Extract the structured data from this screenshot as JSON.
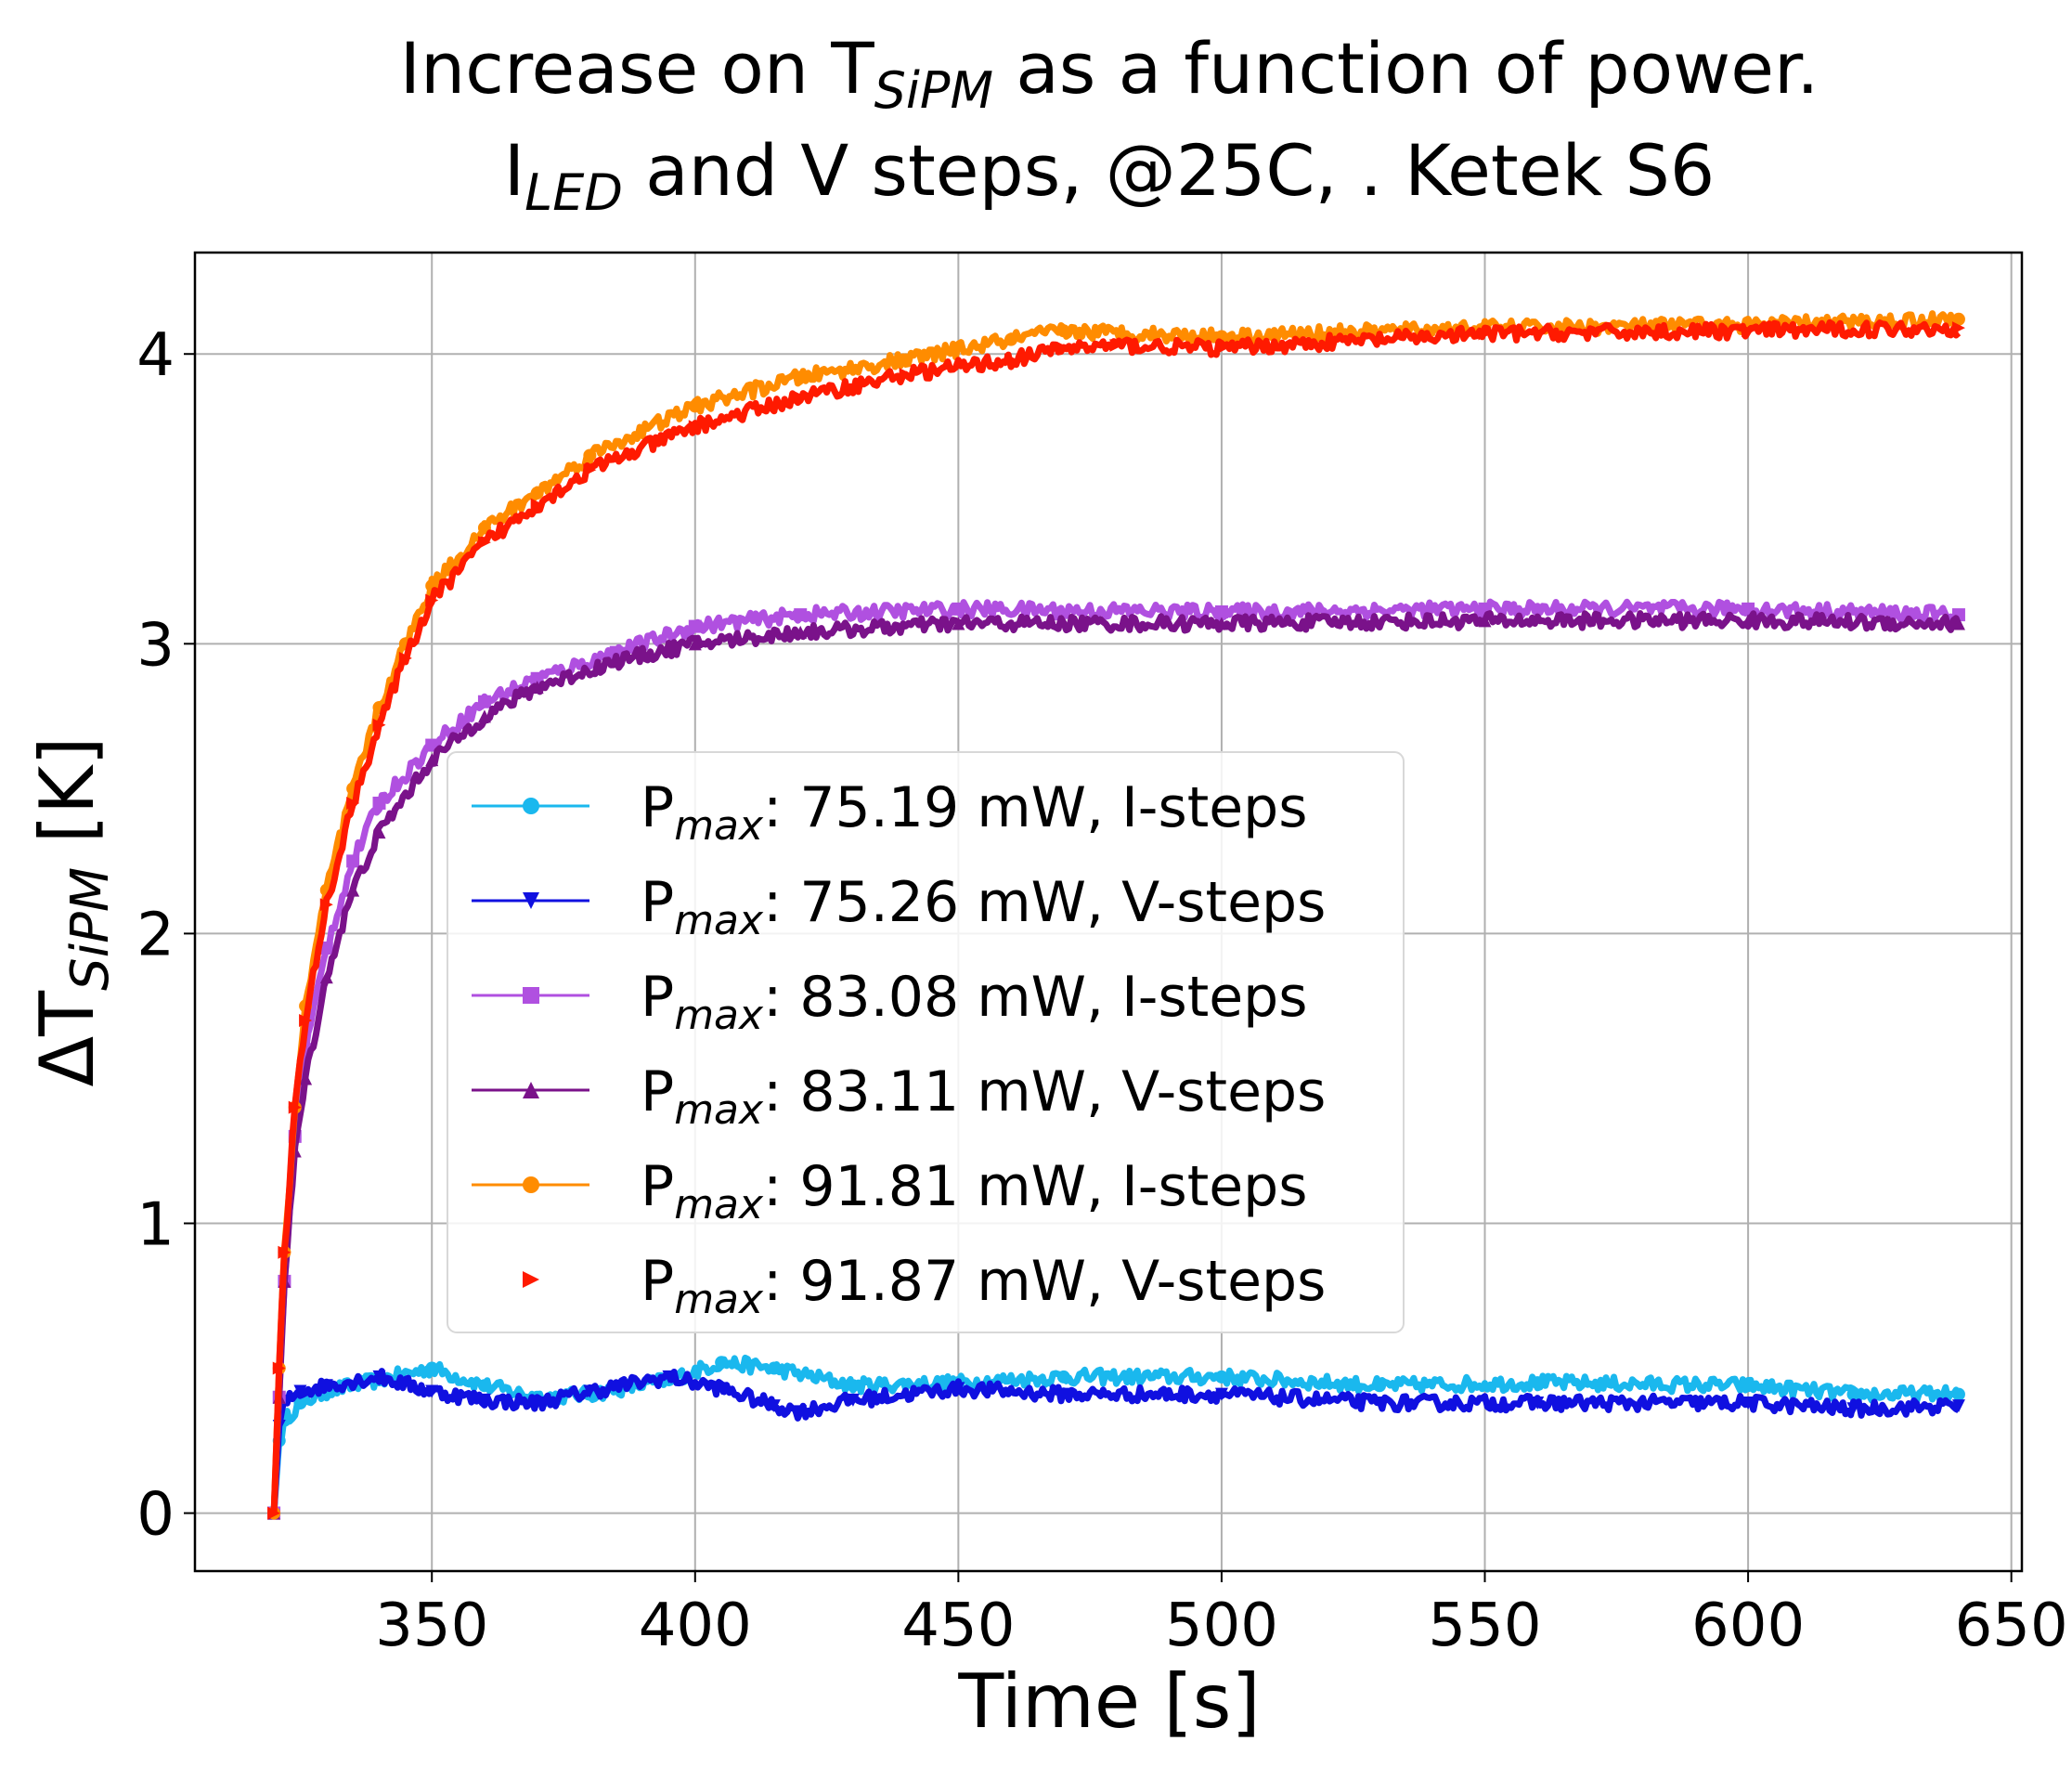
{
  "chart_data": {
    "type": "line",
    "title_line1": {
      "prefix": "Increase on T",
      "sub": "SiPM",
      "suffix": " as a function of power."
    },
    "title_line2": {
      "prefix": "I",
      "sub": "LED",
      "suffix": " and V steps, @25C, . Ketek S6"
    },
    "xlabel": "Time [s]",
    "ylabel": {
      "prefix": "ΔT",
      "sub": "SiPM",
      "suffix": " [K]"
    },
    "xlim": [
      305,
      652
    ],
    "ylim": [
      -0.2,
      4.35
    ],
    "xticks": [
      350,
      400,
      450,
      500,
      550,
      600,
      650
    ],
    "yticks": [
      0,
      1,
      2,
      3,
      4
    ],
    "grid": true,
    "legend_position": "center-left",
    "legend_prefix": "P",
    "legend_sub": "max",
    "series": [
      {
        "name": ": 75.19 mW, I-steps",
        "color": "#1ab8ee",
        "marker": "circle",
        "x": [
          320,
          321,
          322,
          325,
          330,
          340,
          350,
          360,
          370,
          380,
          395,
          405,
          415,
          430,
          450,
          470,
          500,
          530,
          560,
          600,
          620,
          640
        ],
        "y": [
          0,
          0.25,
          0.32,
          0.38,
          0.42,
          0.46,
          0.5,
          0.44,
          0.4,
          0.41,
          0.46,
          0.52,
          0.5,
          0.44,
          0.45,
          0.47,
          0.47,
          0.44,
          0.45,
          0.44,
          0.41,
          0.41
        ]
      },
      {
        "name": ": 75.26 mW, V-steps",
        "color": "#1010e0",
        "marker": "triangle-down",
        "x": [
          320,
          321,
          322,
          325,
          330,
          340,
          350,
          360,
          370,
          380,
          395,
          405,
          415,
          420,
          430,
          450,
          470,
          500,
          530,
          560,
          600,
          620,
          640
        ],
        "y": [
          0,
          0.3,
          0.38,
          0.42,
          0.44,
          0.47,
          0.42,
          0.39,
          0.38,
          0.42,
          0.47,
          0.43,
          0.37,
          0.35,
          0.39,
          0.43,
          0.41,
          0.41,
          0.38,
          0.38,
          0.38,
          0.36,
          0.37
        ]
      },
      {
        "name": ": 83.08 mW, I-steps",
        "color": "#b050e0",
        "marker": "square",
        "x": [
          320,
          321,
          322,
          324,
          326,
          330,
          335,
          340,
          350,
          360,
          370,
          385,
          400,
          420,
          450,
          500,
          550,
          600,
          640
        ],
        "y": [
          0,
          0.4,
          0.8,
          1.3,
          1.6,
          1.95,
          2.25,
          2.45,
          2.65,
          2.8,
          2.88,
          2.97,
          3.06,
          3.1,
          3.12,
          3.11,
          3.12,
          3.12,
          3.1
        ]
      },
      {
        "name": ": 83.11 mW, V-steps",
        "color": "#7a128a",
        "marker": "triangle-up",
        "x": [
          320,
          321,
          322,
          324,
          326,
          330,
          335,
          340,
          350,
          360,
          370,
          385,
          400,
          420,
          450,
          500,
          550,
          600,
          640
        ],
        "y": [
          0,
          0.4,
          0.8,
          1.25,
          1.5,
          1.85,
          2.15,
          2.35,
          2.6,
          2.75,
          2.85,
          2.94,
          3.0,
          3.04,
          3.07,
          3.07,
          3.08,
          3.08,
          3.07
        ]
      },
      {
        "name": ": 91.81 mW, I-steps",
        "color": "#ff8c00",
        "marker": "circle",
        "x": [
          320,
          321,
          322,
          324,
          326,
          330,
          335,
          340,
          345,
          350,
          360,
          370,
          380,
          400,
          420,
          440,
          460,
          470,
          500,
          550,
          600,
          640
        ],
        "y": [
          0,
          0.5,
          0.9,
          1.4,
          1.75,
          2.15,
          2.5,
          2.78,
          3.0,
          3.2,
          3.4,
          3.52,
          3.65,
          3.82,
          3.92,
          3.98,
          4.05,
          4.08,
          4.06,
          4.09,
          4.1,
          4.12
        ]
      },
      {
        "name": ": 91.87 mW, V-steps",
        "color": "#ff1a00",
        "marker": "triangle-right",
        "x": [
          320,
          321,
          322,
          324,
          326,
          330,
          335,
          340,
          345,
          350,
          360,
          370,
          380,
          400,
          420,
          440,
          460,
          470,
          480,
          500,
          550,
          600,
          640
        ],
        "y": [
          0,
          0.5,
          0.9,
          1.4,
          1.7,
          2.1,
          2.45,
          2.72,
          2.95,
          3.15,
          3.35,
          3.48,
          3.6,
          3.75,
          3.85,
          3.93,
          3.98,
          4.02,
          4.03,
          4.02,
          4.07,
          4.08,
          4.09
        ]
      }
    ]
  }
}
